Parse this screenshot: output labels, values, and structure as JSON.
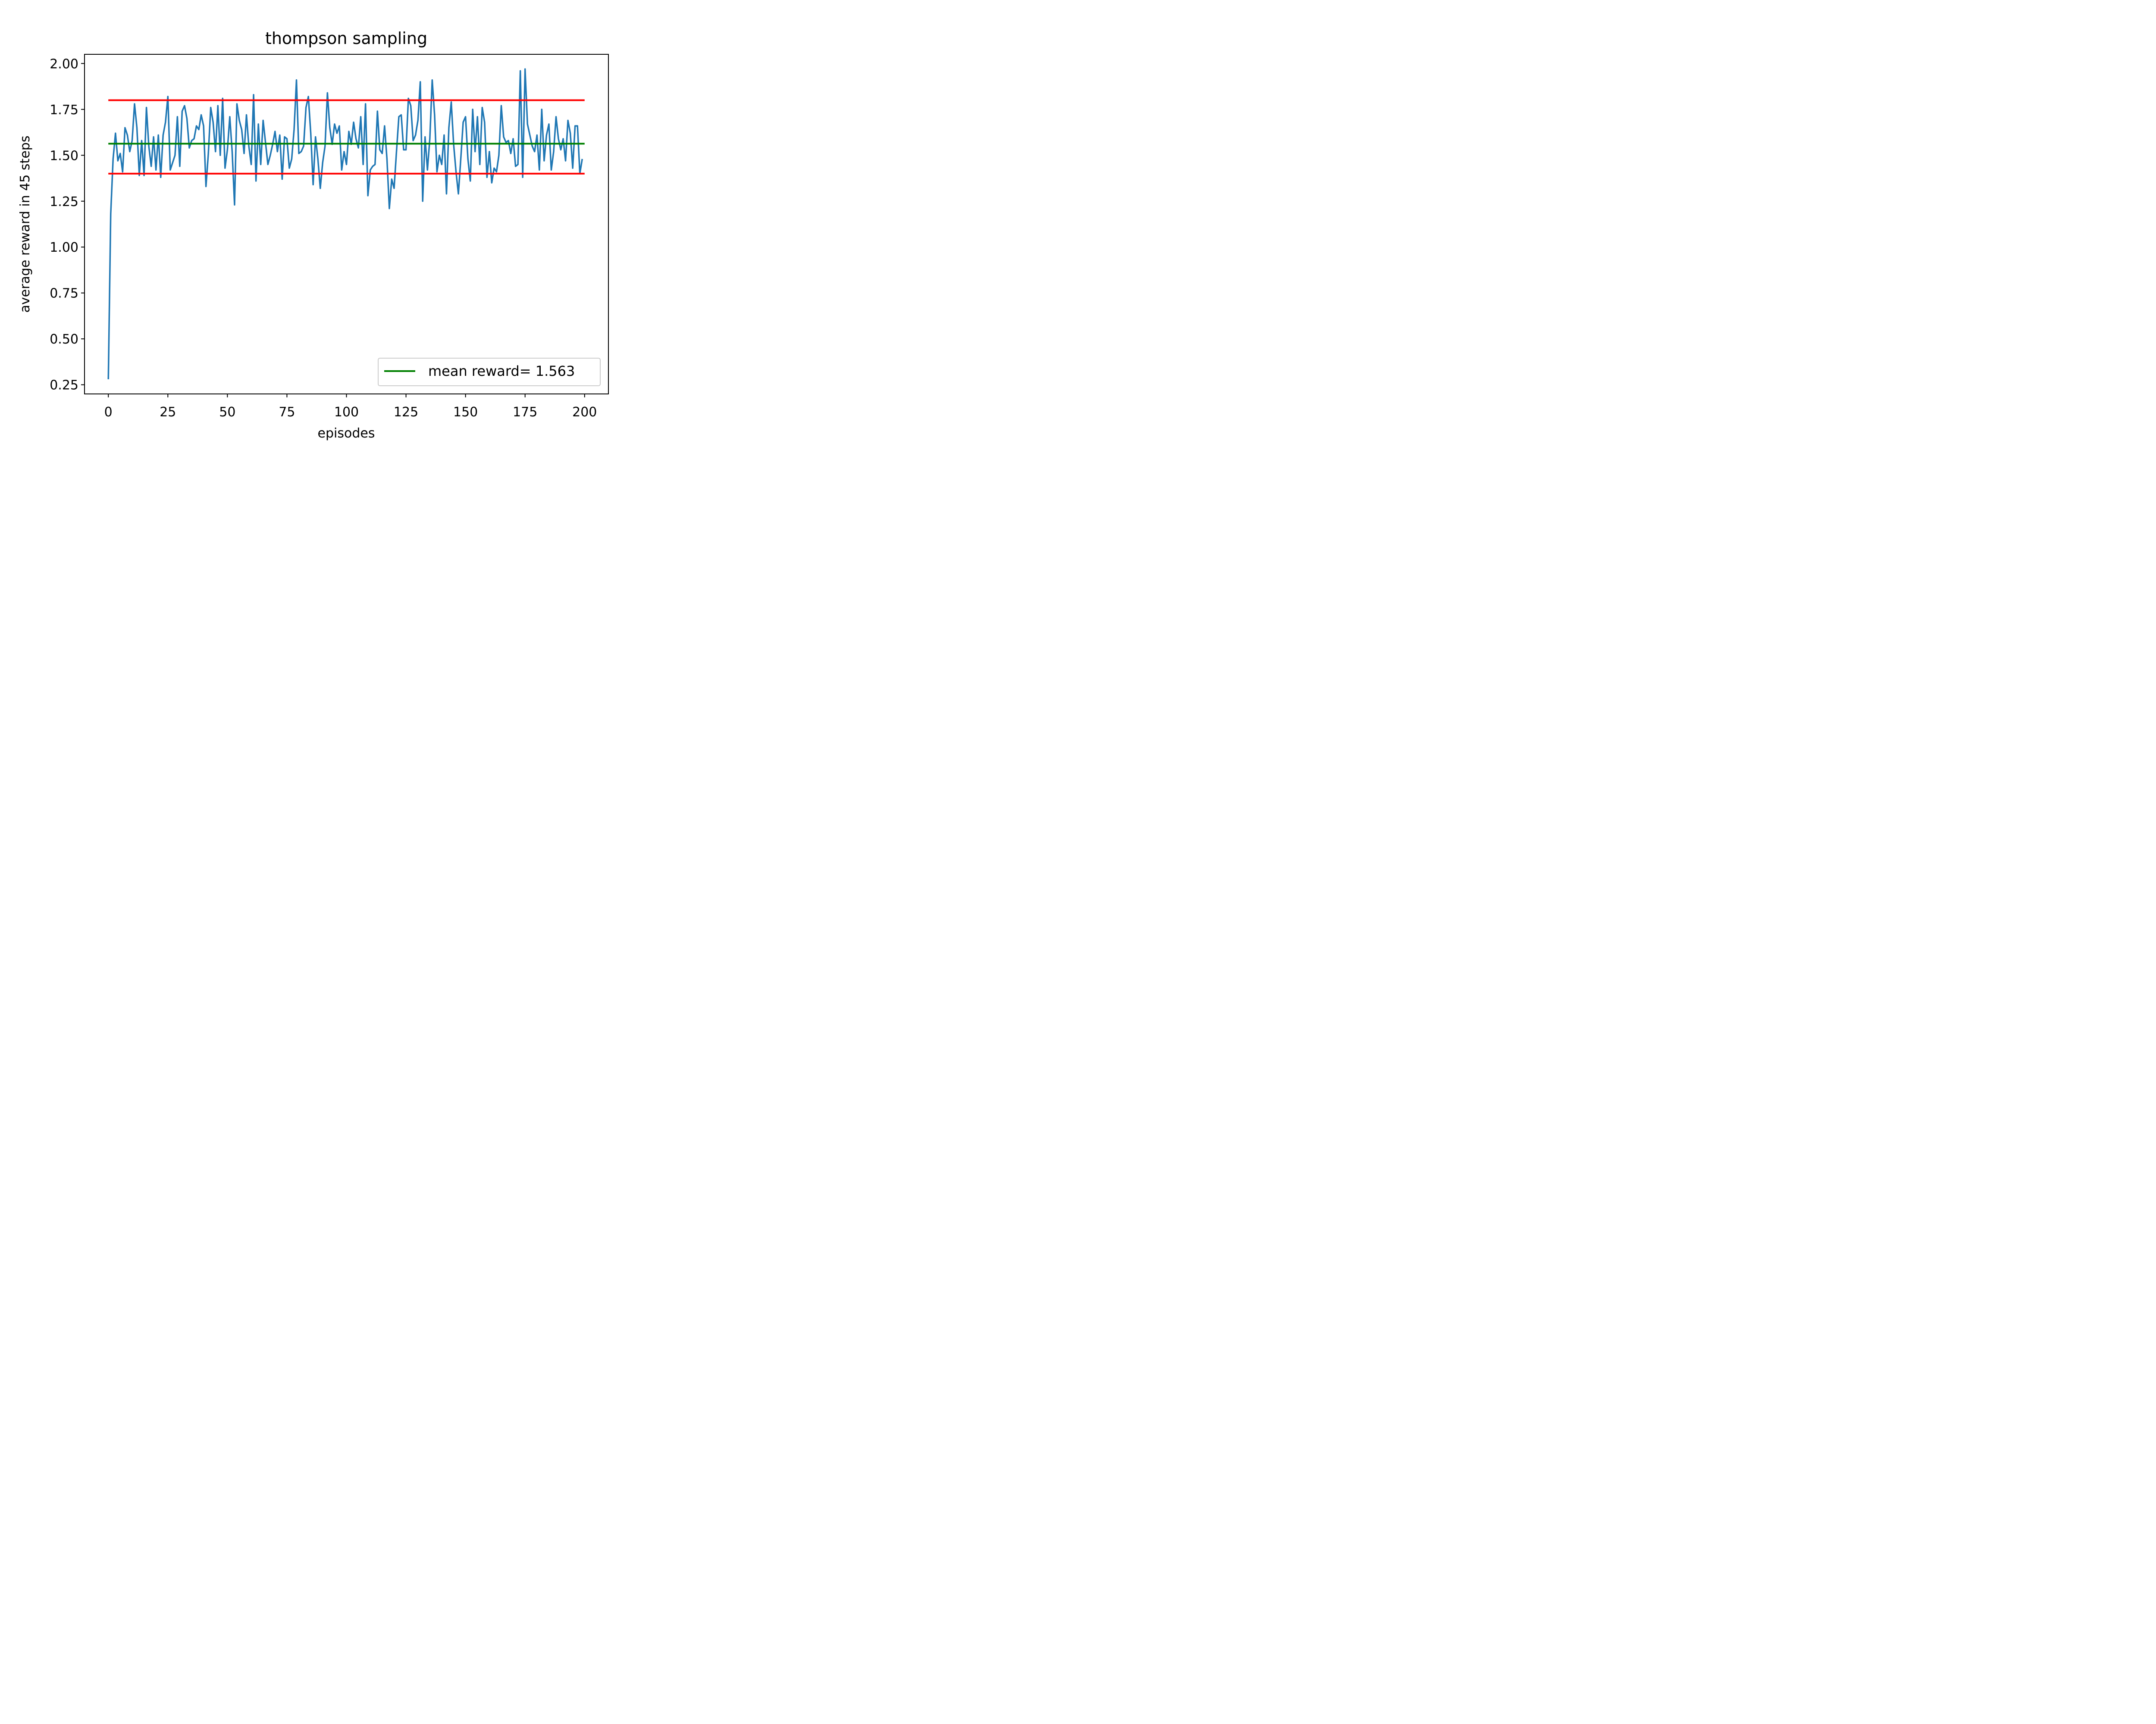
{
  "chart_data": {
    "type": "line",
    "title": "thompson sampling",
    "xlabel": "episodes",
    "ylabel": "average reward in 45 steps",
    "xlim": [
      -10,
      210
    ],
    "ylim": [
      0.2,
      2.05
    ],
    "xticks": [
      0,
      25,
      50,
      75,
      100,
      125,
      150,
      175,
      200
    ],
    "xtick_labels": [
      "0",
      "25",
      "50",
      "75",
      "100",
      "125",
      "150",
      "175",
      "200"
    ],
    "yticks": [
      0.25,
      0.5,
      0.75,
      1.0,
      1.25,
      1.5,
      1.75,
      2.0
    ],
    "ytick_labels": [
      "0.25",
      "0.50",
      "0.75",
      "1.00",
      "1.25",
      "1.50",
      "1.75",
      "2.00"
    ],
    "grid": false,
    "legend_position": "lower-right",
    "series": [
      {
        "color": "#1f77b4",
        "x": [
          0,
          1,
          2,
          3,
          4,
          5,
          6,
          7,
          8,
          9,
          10,
          11,
          12,
          13,
          14,
          15,
          16,
          17,
          18,
          19,
          20,
          21,
          22,
          23,
          24,
          25,
          26,
          27,
          28,
          29,
          30,
          31,
          32,
          33,
          34,
          35,
          36,
          37,
          38,
          39,
          40,
          41,
          42,
          43,
          44,
          45,
          46,
          47,
          48,
          49,
          50,
          51,
          52,
          53,
          54,
          55,
          56,
          57,
          58,
          59,
          60,
          61,
          62,
          63,
          64,
          65,
          66,
          67,
          68,
          69,
          70,
          71,
          72,
          73,
          74,
          75,
          76,
          77,
          78,
          79,
          80,
          81,
          82,
          83,
          84,
          85,
          86,
          87,
          88,
          89,
          90,
          91,
          92,
          93,
          94,
          95,
          96,
          97,
          98,
          99,
          100,
          101,
          102,
          103,
          104,
          105,
          106,
          107,
          108,
          109,
          110,
          111,
          112,
          113,
          114,
          115,
          116,
          117,
          118,
          119,
          120,
          121,
          122,
          123,
          124,
          125,
          126,
          127,
          128,
          129,
          130,
          131,
          132,
          133,
          134,
          135,
          136,
          137,
          138,
          139,
          140,
          141,
          142,
          143,
          144,
          145,
          146,
          147,
          148,
          149,
          150,
          151,
          152,
          153,
          154,
          155,
          156,
          157,
          158,
          159,
          160,
          161,
          162,
          163,
          164,
          165,
          166,
          167,
          168,
          169,
          170,
          171,
          172,
          173,
          174,
          175,
          176,
          177,
          178,
          179,
          180,
          181,
          182,
          183,
          184,
          185,
          186,
          187,
          188,
          189,
          190,
          191,
          192,
          193,
          194,
          195,
          196,
          197,
          198,
          199
        ],
        "values": [
          0.28,
          1.18,
          1.48,
          1.62,
          1.47,
          1.51,
          1.41,
          1.65,
          1.61,
          1.52,
          1.58,
          1.78,
          1.65,
          1.39,
          1.58,
          1.39,
          1.76,
          1.55,
          1.44,
          1.6,
          1.42,
          1.61,
          1.38,
          1.61,
          1.68,
          1.82,
          1.42,
          1.46,
          1.5,
          1.71,
          1.44,
          1.74,
          1.77,
          1.7,
          1.54,
          1.58,
          1.59,
          1.66,
          1.64,
          1.72,
          1.66,
          1.33,
          1.51,
          1.76,
          1.68,
          1.52,
          1.77,
          1.5,
          1.81,
          1.43,
          1.53,
          1.71,
          1.52,
          1.23,
          1.78,
          1.69,
          1.64,
          1.51,
          1.72,
          1.55,
          1.45,
          1.83,
          1.36,
          1.67,
          1.45,
          1.69,
          1.57,
          1.45,
          1.5,
          1.56,
          1.63,
          1.52,
          1.61,
          1.37,
          1.6,
          1.59,
          1.43,
          1.48,
          1.64,
          1.91,
          1.51,
          1.52,
          1.55,
          1.76,
          1.82,
          1.62,
          1.34,
          1.6,
          1.48,
          1.32,
          1.46,
          1.55,
          1.84,
          1.65,
          1.56,
          1.67,
          1.62,
          1.66,
          1.42,
          1.52,
          1.45,
          1.63,
          1.56,
          1.68,
          1.59,
          1.54,
          1.71,
          1.45,
          1.78,
          1.28,
          1.42,
          1.44,
          1.45,
          1.74,
          1.53,
          1.51,
          1.66,
          1.48,
          1.21,
          1.37,
          1.32,
          1.52,
          1.71,
          1.72,
          1.53,
          1.53,
          1.81,
          1.77,
          1.58,
          1.61,
          1.69,
          1.9,
          1.25,
          1.6,
          1.42,
          1.59,
          1.91,
          1.72,
          1.41,
          1.5,
          1.45,
          1.61,
          1.29,
          1.65,
          1.79,
          1.56,
          1.41,
          1.29,
          1.48,
          1.68,
          1.71,
          1.48,
          1.36,
          1.75,
          1.52,
          1.71,
          1.45,
          1.76,
          1.68,
          1.38,
          1.52,
          1.35,
          1.43,
          1.41,
          1.5,
          1.77,
          1.6,
          1.57,
          1.58,
          1.51,
          1.59,
          1.44,
          1.45,
          1.96,
          1.38,
          1.97,
          1.67,
          1.61,
          1.55,
          1.52,
          1.61,
          1.42,
          1.75,
          1.47,
          1.61,
          1.67,
          1.42,
          1.52,
          1.71,
          1.59,
          1.53,
          1.59,
          1.47,
          1.69,
          1.62,
          1.43,
          1.66,
          1.66,
          1.4,
          1.48
        ]
      }
    ],
    "hlines": [
      {
        "y": 1.8,
        "xmin": 0,
        "xmax": 200,
        "color": "#ff0000"
      },
      {
        "y": 1.4,
        "xmin": 0,
        "xmax": 200,
        "color": "#ff0000"
      },
      {
        "y": 1.563,
        "xmin": 0,
        "xmax": 200,
        "color": "#008000"
      }
    ],
    "legend": [
      {
        "label": "mean reward= 1.563",
        "color": "#008000"
      }
    ]
  }
}
